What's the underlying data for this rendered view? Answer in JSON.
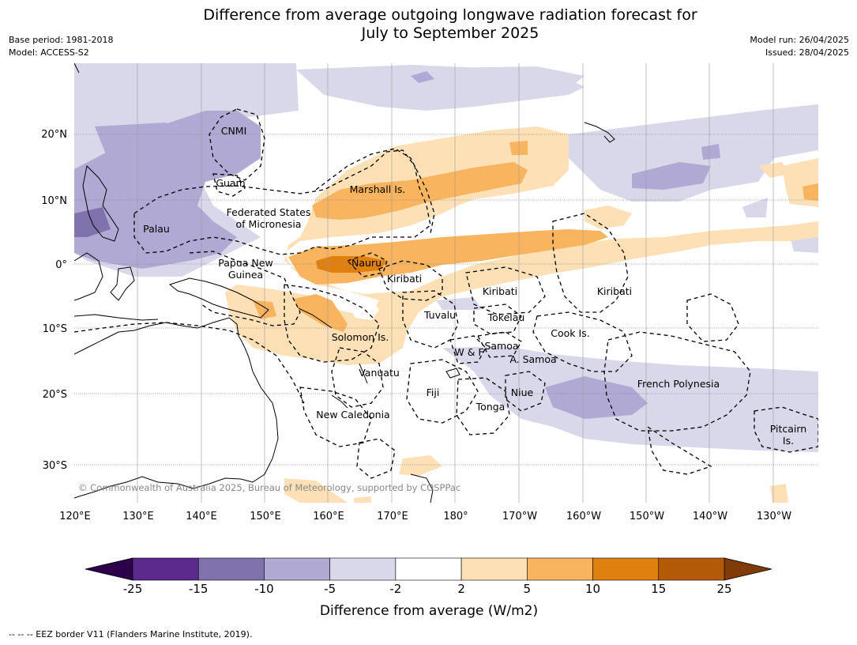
{
  "title": [
    "Difference from average outgoing longwave radiation forecast for",
    "July to September 2025"
  ],
  "meta_left": [
    "Base period: 1981-2018",
    "Model: ACCESS-S2"
  ],
  "meta_right": [
    "Model run: 26/04/2025",
    "Issued: 28/04/2025"
  ],
  "longitude_ticks": [
    "120°E",
    "130°E",
    "140°E",
    "150°E",
    "160°E",
    "170°E",
    "180°",
    "170°W",
    "160°W",
    "150°W",
    "140°W",
    "130°W"
  ],
  "latitude_ticks": [
    "20°N",
    "10°N",
    "0°",
    "10°S",
    "20°S",
    "30°S"
  ],
  "region_labels": [
    "CNMI",
    "Guam",
    "Marshall Is.",
    "Federated States",
    "of Micronesia",
    "Palau",
    "Papua New",
    "Guinea",
    "Nauru",
    "Kiribati",
    "Kiribati",
    "Kiribati",
    "Tuvalu",
    "Tokelau",
    "Cook Is.",
    "Solomon Is.",
    "W & F",
    "Samoa",
    "A. Samoa",
    "Vanuatu",
    "Fiji",
    "Niue",
    "Tonga",
    "French Polynesia",
    "New Caledonia",
    "Pitcairn",
    "Is."
  ],
  "copyright": "© Commonwealth of Australia 2025, Bureau of Meteorology, supported by COSPPac",
  "colorbar": {
    "ticks": [
      "-25",
      "-15",
      "-10",
      "-5",
      "-2",
      "2",
      "5",
      "10",
      "15",
      "25"
    ],
    "colors": [
      "#5b2a8c",
      "#7f72ad",
      "#b0a9d3",
      "#d9d8ea",
      "#ffffff",
      "#fde0b6",
      "#f9b45f",
      "#e0810f",
      "#b35a06"
    ],
    "under_color": "#2d004b",
    "over_color": "#7f3b08",
    "label": "Difference from average (W/m2)"
  },
  "footer": "--  --  -- EEZ border V11 (Flanders Marine Institute, 2019)."
}
